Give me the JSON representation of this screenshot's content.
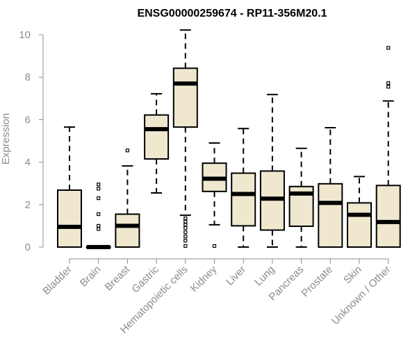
{
  "chart_data": {
    "type": "boxplot",
    "title": "ENSG00000259674 - RP11-356M20.1",
    "xlabel": "",
    "ylabel": "Expression",
    "ylim": [
      0,
      10.4
    ],
    "yticks": [
      0,
      2,
      4,
      6,
      8,
      10
    ],
    "colors": {
      "box_fill": "#efe8cf",
      "stroke": "#000000",
      "axis_text": "#8c8c8c"
    },
    "categories": [
      "Bladder",
      "Brain",
      "Breast",
      "Gastric",
      "Hematopoietic cells",
      "Kidney",
      "Liver",
      "Lung",
      "Pancreas",
      "Prostate",
      "Skin",
      "Unknown / Other"
    ],
    "boxes": [
      {
        "name": "Bladder",
        "min": 0,
        "q1": 0,
        "median": 0.95,
        "q3": 2.68,
        "max": 5.65,
        "outliers": []
      },
      {
        "name": "Brain",
        "min": 0,
        "q1": 0,
        "median": 0,
        "q3": 0,
        "max": 0,
        "outliers": [
          0.85,
          1.0,
          1.55,
          2.3,
          2.75,
          2.95
        ]
      },
      {
        "name": "Breast",
        "min": 0,
        "q1": 0,
        "median": 1.0,
        "q3": 1.55,
        "max": 3.82,
        "outliers": [
          4.55
        ]
      },
      {
        "name": "Gastric",
        "min": 2.55,
        "q1": 4.15,
        "median": 5.55,
        "q3": 6.22,
        "max": 7.22,
        "outliers": []
      },
      {
        "name": "Hematopoietic cells",
        "min": 1.5,
        "q1": 5.65,
        "median": 7.7,
        "q3": 8.42,
        "max": 10.22,
        "outliers": [
          0.05,
          0.3,
          0.5,
          0.7,
          0.9,
          1.05,
          1.2,
          1.35
        ]
      },
      {
        "name": "Kidney",
        "min": 1.05,
        "q1": 2.62,
        "median": 3.22,
        "q3": 3.95,
        "max": 4.9,
        "outliers": [
          0.05
        ]
      },
      {
        "name": "Liver",
        "min": 0,
        "q1": 1.0,
        "median": 2.5,
        "q3": 3.48,
        "max": 5.58,
        "outliers": []
      },
      {
        "name": "Lung",
        "min": 0,
        "q1": 0.8,
        "median": 2.28,
        "q3": 3.58,
        "max": 7.18,
        "outliers": []
      },
      {
        "name": "Pancreas",
        "min": 0,
        "q1": 0.98,
        "median": 2.52,
        "q3": 2.85,
        "max": 4.65,
        "outliers": []
      },
      {
        "name": "Prostate",
        "min": 0,
        "q1": 0,
        "median": 2.08,
        "q3": 2.98,
        "max": 5.62,
        "outliers": []
      },
      {
        "name": "Skin",
        "min": 0,
        "q1": 0,
        "median": 1.52,
        "q3": 2.08,
        "max": 3.32,
        "outliers": []
      },
      {
        "name": "Unknown / Other",
        "min": 0,
        "q1": 0,
        "median": 1.18,
        "q3": 2.9,
        "max": 6.88,
        "outliers": [
          7.55,
          7.72,
          9.38
        ]
      }
    ]
  }
}
